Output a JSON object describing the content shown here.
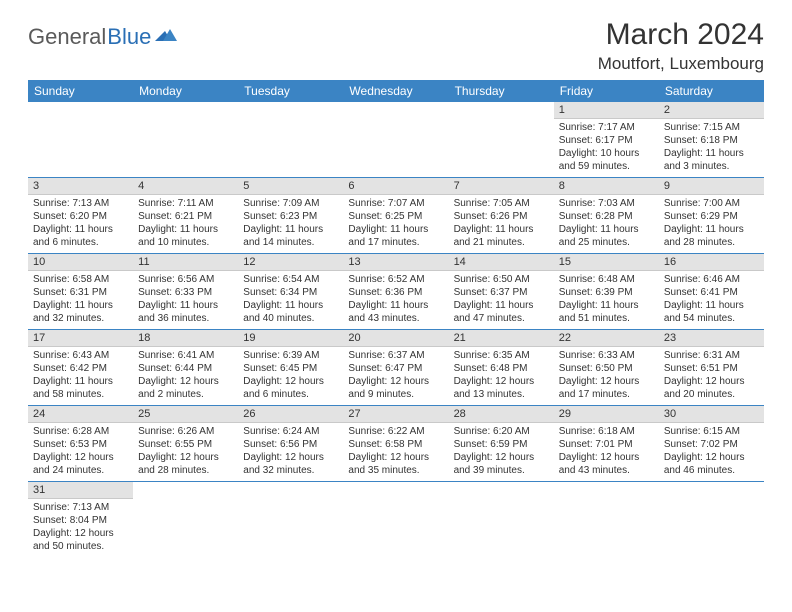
{
  "logo": {
    "text1": "General",
    "text2": "Blue"
  },
  "title": "March 2024",
  "location": "Moutfort, Luxembourg",
  "colors": {
    "header_bg": "#3b84c4",
    "header_text": "#ffffff",
    "daynum_bg": "#e3e3e3",
    "row_border": "#3b84c4",
    "logo_gray": "#5a5a5a",
    "logo_blue": "#2a6fb5"
  },
  "weekdays": [
    "Sunday",
    "Monday",
    "Tuesday",
    "Wednesday",
    "Thursday",
    "Friday",
    "Saturday"
  ],
  "weeks": [
    [
      null,
      null,
      null,
      null,
      null,
      {
        "n": "1",
        "sr": "Sunrise: 7:17 AM",
        "ss": "Sunset: 6:17 PM",
        "dl": "Daylight: 10 hours and 59 minutes."
      },
      {
        "n": "2",
        "sr": "Sunrise: 7:15 AM",
        "ss": "Sunset: 6:18 PM",
        "dl": "Daylight: 11 hours and 3 minutes."
      }
    ],
    [
      {
        "n": "3",
        "sr": "Sunrise: 7:13 AM",
        "ss": "Sunset: 6:20 PM",
        "dl": "Daylight: 11 hours and 6 minutes."
      },
      {
        "n": "4",
        "sr": "Sunrise: 7:11 AM",
        "ss": "Sunset: 6:21 PM",
        "dl": "Daylight: 11 hours and 10 minutes."
      },
      {
        "n": "5",
        "sr": "Sunrise: 7:09 AM",
        "ss": "Sunset: 6:23 PM",
        "dl": "Daylight: 11 hours and 14 minutes."
      },
      {
        "n": "6",
        "sr": "Sunrise: 7:07 AM",
        "ss": "Sunset: 6:25 PM",
        "dl": "Daylight: 11 hours and 17 minutes."
      },
      {
        "n": "7",
        "sr": "Sunrise: 7:05 AM",
        "ss": "Sunset: 6:26 PM",
        "dl": "Daylight: 11 hours and 21 minutes."
      },
      {
        "n": "8",
        "sr": "Sunrise: 7:03 AM",
        "ss": "Sunset: 6:28 PM",
        "dl": "Daylight: 11 hours and 25 minutes."
      },
      {
        "n": "9",
        "sr": "Sunrise: 7:00 AM",
        "ss": "Sunset: 6:29 PM",
        "dl": "Daylight: 11 hours and 28 minutes."
      }
    ],
    [
      {
        "n": "10",
        "sr": "Sunrise: 6:58 AM",
        "ss": "Sunset: 6:31 PM",
        "dl": "Daylight: 11 hours and 32 minutes."
      },
      {
        "n": "11",
        "sr": "Sunrise: 6:56 AM",
        "ss": "Sunset: 6:33 PM",
        "dl": "Daylight: 11 hours and 36 minutes."
      },
      {
        "n": "12",
        "sr": "Sunrise: 6:54 AM",
        "ss": "Sunset: 6:34 PM",
        "dl": "Daylight: 11 hours and 40 minutes."
      },
      {
        "n": "13",
        "sr": "Sunrise: 6:52 AM",
        "ss": "Sunset: 6:36 PM",
        "dl": "Daylight: 11 hours and 43 minutes."
      },
      {
        "n": "14",
        "sr": "Sunrise: 6:50 AM",
        "ss": "Sunset: 6:37 PM",
        "dl": "Daylight: 11 hours and 47 minutes."
      },
      {
        "n": "15",
        "sr": "Sunrise: 6:48 AM",
        "ss": "Sunset: 6:39 PM",
        "dl": "Daylight: 11 hours and 51 minutes."
      },
      {
        "n": "16",
        "sr": "Sunrise: 6:46 AM",
        "ss": "Sunset: 6:41 PM",
        "dl": "Daylight: 11 hours and 54 minutes."
      }
    ],
    [
      {
        "n": "17",
        "sr": "Sunrise: 6:43 AM",
        "ss": "Sunset: 6:42 PM",
        "dl": "Daylight: 11 hours and 58 minutes."
      },
      {
        "n": "18",
        "sr": "Sunrise: 6:41 AM",
        "ss": "Sunset: 6:44 PM",
        "dl": "Daylight: 12 hours and 2 minutes."
      },
      {
        "n": "19",
        "sr": "Sunrise: 6:39 AM",
        "ss": "Sunset: 6:45 PM",
        "dl": "Daylight: 12 hours and 6 minutes."
      },
      {
        "n": "20",
        "sr": "Sunrise: 6:37 AM",
        "ss": "Sunset: 6:47 PM",
        "dl": "Daylight: 12 hours and 9 minutes."
      },
      {
        "n": "21",
        "sr": "Sunrise: 6:35 AM",
        "ss": "Sunset: 6:48 PM",
        "dl": "Daylight: 12 hours and 13 minutes."
      },
      {
        "n": "22",
        "sr": "Sunrise: 6:33 AM",
        "ss": "Sunset: 6:50 PM",
        "dl": "Daylight: 12 hours and 17 minutes."
      },
      {
        "n": "23",
        "sr": "Sunrise: 6:31 AM",
        "ss": "Sunset: 6:51 PM",
        "dl": "Daylight: 12 hours and 20 minutes."
      }
    ],
    [
      {
        "n": "24",
        "sr": "Sunrise: 6:28 AM",
        "ss": "Sunset: 6:53 PM",
        "dl": "Daylight: 12 hours and 24 minutes."
      },
      {
        "n": "25",
        "sr": "Sunrise: 6:26 AM",
        "ss": "Sunset: 6:55 PM",
        "dl": "Daylight: 12 hours and 28 minutes."
      },
      {
        "n": "26",
        "sr": "Sunrise: 6:24 AM",
        "ss": "Sunset: 6:56 PM",
        "dl": "Daylight: 12 hours and 32 minutes."
      },
      {
        "n": "27",
        "sr": "Sunrise: 6:22 AM",
        "ss": "Sunset: 6:58 PM",
        "dl": "Daylight: 12 hours and 35 minutes."
      },
      {
        "n": "28",
        "sr": "Sunrise: 6:20 AM",
        "ss": "Sunset: 6:59 PM",
        "dl": "Daylight: 12 hours and 39 minutes."
      },
      {
        "n": "29",
        "sr": "Sunrise: 6:18 AM",
        "ss": "Sunset: 7:01 PM",
        "dl": "Daylight: 12 hours and 43 minutes."
      },
      {
        "n": "30",
        "sr": "Sunrise: 6:15 AM",
        "ss": "Sunset: 7:02 PM",
        "dl": "Daylight: 12 hours and 46 minutes."
      }
    ],
    [
      {
        "n": "31",
        "sr": "Sunrise: 7:13 AM",
        "ss": "Sunset: 8:04 PM",
        "dl": "Daylight: 12 hours and 50 minutes."
      },
      null,
      null,
      null,
      null,
      null,
      null
    ]
  ]
}
